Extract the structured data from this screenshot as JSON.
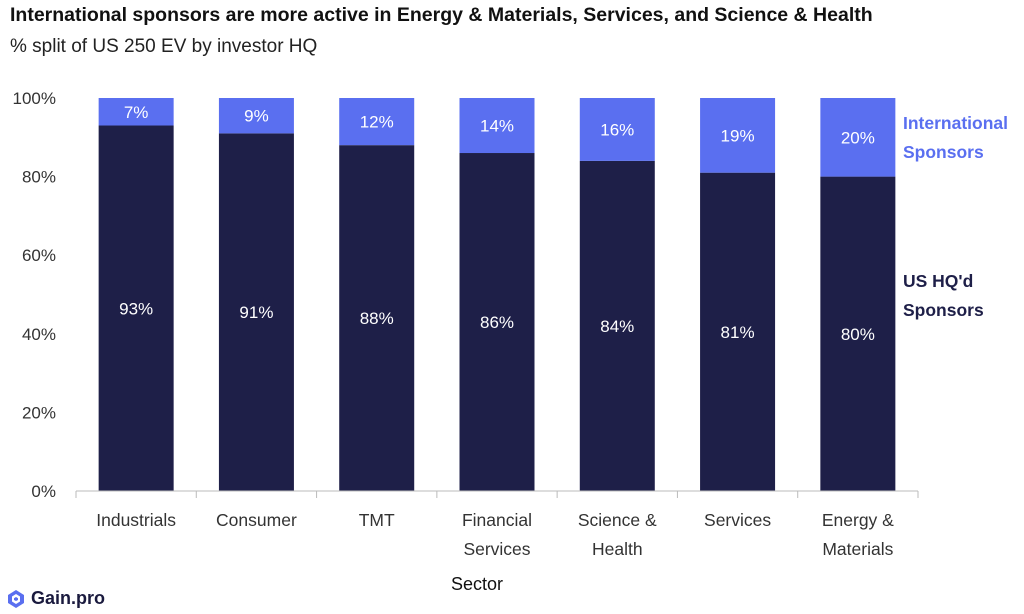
{
  "title": "International sponsors are more active in Energy & Materials, Services, and Science & Health",
  "subtitle": "% split of US 250 EV by investor HQ",
  "brand": "Gain.pro",
  "chart_data": {
    "type": "bar",
    "stacked": true,
    "categories": [
      [
        "Industrials"
      ],
      [
        "Consumer"
      ],
      [
        "TMT"
      ],
      [
        "Financial",
        "Services"
      ],
      [
        "Science &",
        "Health"
      ],
      [
        "Services"
      ],
      [
        "Energy &",
        "Materials"
      ]
    ],
    "series": [
      {
        "name": "US HQ'd Sponsors",
        "values": [
          93,
          91,
          88,
          86,
          84,
          81,
          80
        ],
        "labels": [
          "93%",
          "91%",
          "88%",
          "86%",
          "84%",
          "81%",
          "80%"
        ],
        "color": "#1e1f48"
      },
      {
        "name": "International Sponsors",
        "values": [
          7,
          9,
          12,
          14,
          16,
          19,
          20
        ],
        "labels": [
          "7%",
          "9%",
          "12%",
          "14%",
          "16%",
          "19%",
          "20%"
        ],
        "color": "#5a6ff0"
      }
    ],
    "legend": [
      "US HQ'd Sponsors",
      "International Sponsors"
    ],
    "legend_display": [
      "US HQ'd\nSponsors",
      "International\nSponsors"
    ],
    "legend_placement": "right, aligned with series",
    "xlabel": "Sector",
    "ylabel": "",
    "ylim": [
      0,
      100
    ],
    "yticks": [
      0,
      20,
      40,
      60,
      80,
      100
    ],
    "ytick_labels": [
      "0%",
      "20%",
      "40%",
      "60%",
      "80%",
      "100%"
    ],
    "grid": false
  }
}
